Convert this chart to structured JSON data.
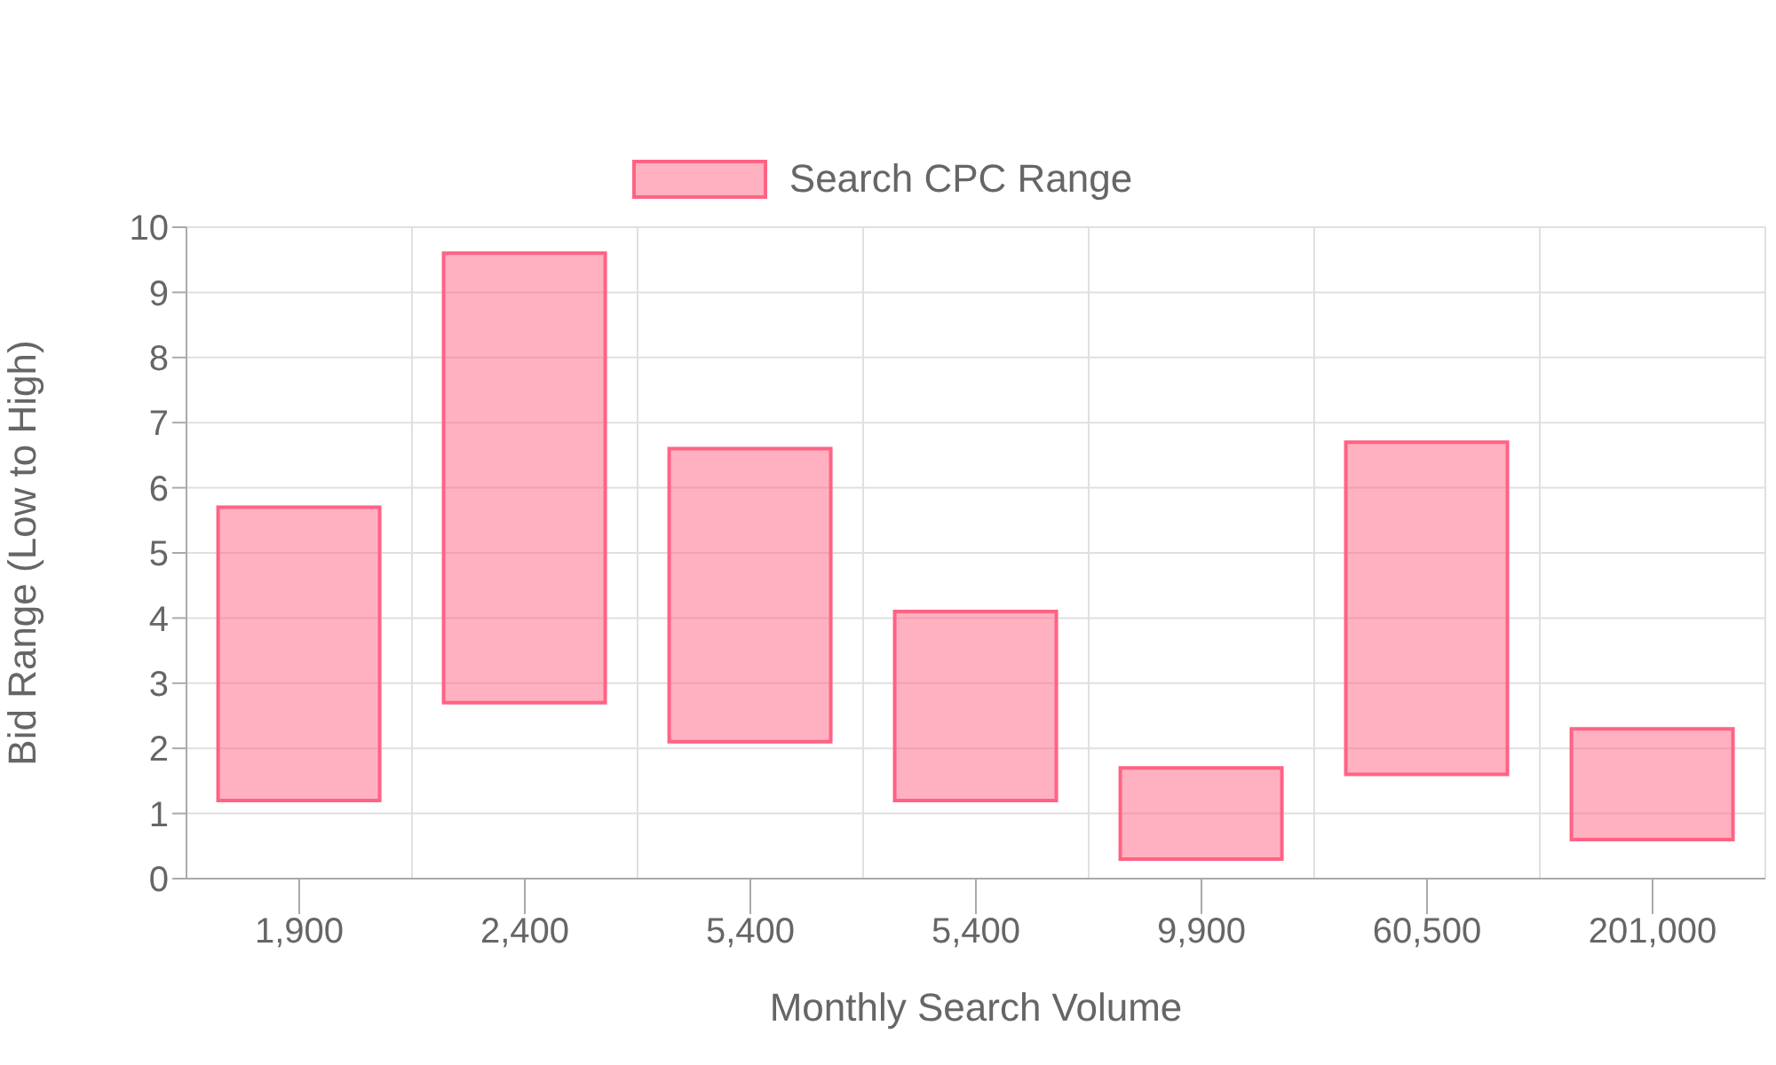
{
  "chart_data": {
    "type": "bar",
    "xlabel": "Monthly Search Volume",
    "ylabel": "Bid Range (Low to High)",
    "categories": [
      "1,900",
      "2,400",
      "5,400",
      "5,400",
      "9,900",
      "60,500",
      "201,000"
    ],
    "series": [
      {
        "name": "Search CPC Range",
        "color": "#ff6384",
        "base": [
          1.2,
          2.7,
          2.1,
          1.2,
          0.3,
          1.6,
          0.6
        ],
        "values": [
          4.5,
          6.9,
          4.5,
          2.9,
          1.4,
          5.1,
          1.7
        ]
      }
    ],
    "ylim": [
      0,
      10
    ],
    "yticks": [
      0,
      1,
      2,
      3,
      4,
      5,
      6,
      7,
      8,
      9,
      10
    ],
    "grid": true,
    "legend": "top"
  }
}
